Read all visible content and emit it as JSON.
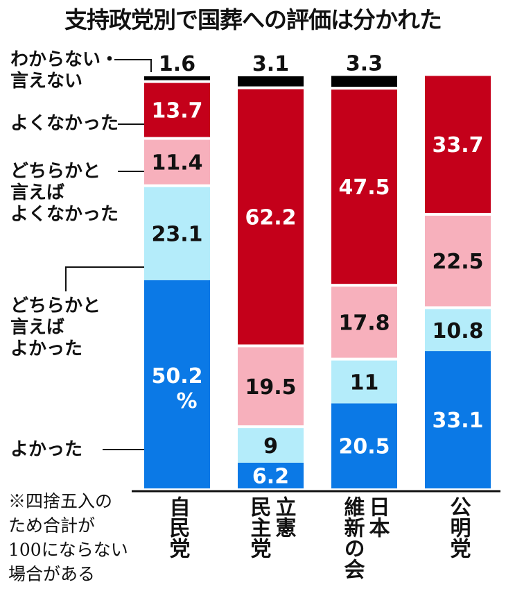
{
  "chart_data": {
    "type": "bar",
    "stacked": true,
    "title": "支持政党別で国葬への評価は分かれた",
    "unit": "%",
    "categories": [
      "自民党",
      "立憲民主党",
      "日本維新の会",
      "公明党"
    ],
    "category_lines": [
      [
        "自民党"
      ],
      [
        "立憲",
        "民主党"
      ],
      [
        "日本",
        "維新の会"
      ],
      [
        "公明党"
      ]
    ],
    "series": [
      {
        "name": "よかった",
        "label_lines": [
          "よかった"
        ],
        "color": "#0b79e6",
        "text_color": "#ffffff",
        "values": [
          50.2,
          6.2,
          20.5,
          33.1
        ],
        "labels": [
          "50.2",
          "6.2",
          "20.5",
          "33.1"
        ]
      },
      {
        "name": "どちらかと言えばよかった",
        "label_lines": [
          "どちらかと",
          "言えば",
          "よかった"
        ],
        "color": "#b4ecfa",
        "text_color": "#111111",
        "values": [
          23.1,
          9,
          11,
          10.8
        ],
        "labels": [
          "23.1",
          "9",
          "11",
          "10.8"
        ]
      },
      {
        "name": "どちらかと言えばよくなかった",
        "label_lines": [
          "どちらかと",
          "言えば",
          "よくなかった"
        ],
        "color": "#f7b0bc",
        "text_color": "#111111",
        "values": [
          11.4,
          19.5,
          17.8,
          22.5
        ],
        "labels": [
          "11.4",
          "19.5",
          "17.8",
          "22.5"
        ]
      },
      {
        "name": "よくなかった",
        "label_lines": [
          "よくなかった"
        ],
        "color": "#c4001a",
        "text_color": "#ffffff",
        "values": [
          13.7,
          62.2,
          47.5,
          33.7
        ],
        "labels": [
          "13.7",
          "62.2",
          "47.5",
          "33.7"
        ]
      },
      {
        "name": "わからない・言えない",
        "label_lines": [
          "わからない・",
          "言えない"
        ],
        "color": "#000000",
        "text_color": "#111111",
        "values": [
          1.6,
          3.1,
          3.3,
          0
        ],
        "labels": [
          "1.6",
          "3.1",
          "3.3",
          ""
        ]
      }
    ],
    "percent_marker": "%",
    "ylim": [
      0,
      100
    ],
    "grid": false,
    "legend": "left-side leader labels"
  },
  "footnote": [
    "※四捨五入の",
    "ため合計が",
    "100にならない",
    "場合がある"
  ]
}
